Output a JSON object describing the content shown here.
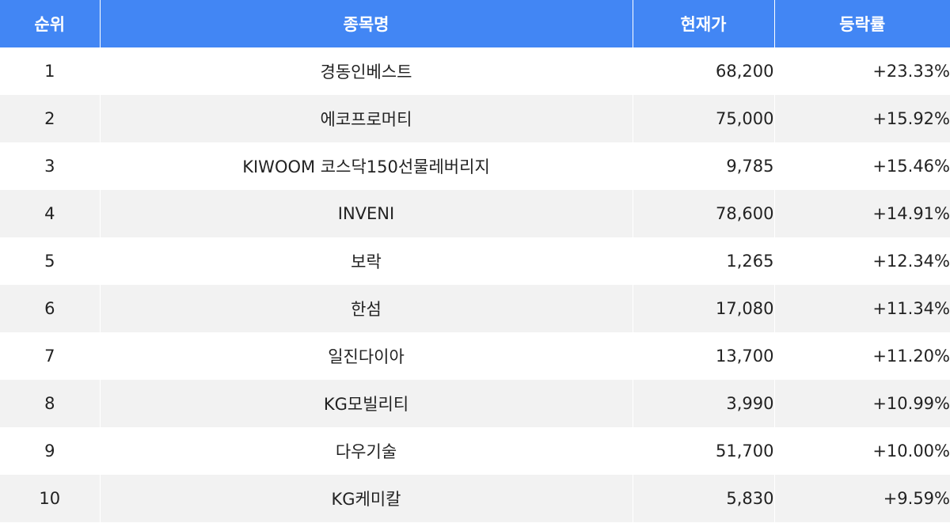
{
  "table": {
    "columns": {
      "rank": "순위",
      "name": "종목명",
      "price": "현재가",
      "change": "등락률"
    },
    "rows": [
      {
        "rank": "1",
        "name": "경동인베스트",
        "price": "68,200",
        "change": "+23.33%"
      },
      {
        "rank": "2",
        "name": "에코프로머티",
        "price": "75,000",
        "change": "+15.92%"
      },
      {
        "rank": "3",
        "name": "KIWOOM 코스닥150선물레버리지",
        "price": "9,785",
        "change": "+15.46%"
      },
      {
        "rank": "4",
        "name": "INVENI",
        "price": "78,600",
        "change": "+14.91%"
      },
      {
        "rank": "5",
        "name": "보락",
        "price": "1,265",
        "change": "+12.34%"
      },
      {
        "rank": "6",
        "name": "한섬",
        "price": "17,080",
        "change": "+11.34%"
      },
      {
        "rank": "7",
        "name": "일진다이아",
        "price": "13,700",
        "change": "+11.20%"
      },
      {
        "rank": "8",
        "name": "KG모빌리티",
        "price": "3,990",
        "change": "+10.99%"
      },
      {
        "rank": "9",
        "name": "다우기술",
        "price": "51,700",
        "change": "+10.00%"
      },
      {
        "rank": "10",
        "name": "KG케미칼",
        "price": "5,830",
        "change": "+9.59%"
      }
    ]
  },
  "colors": {
    "header_bg": "#4286f4",
    "header_text": "#ffffff",
    "stripe": "#f2f2f2"
  }
}
